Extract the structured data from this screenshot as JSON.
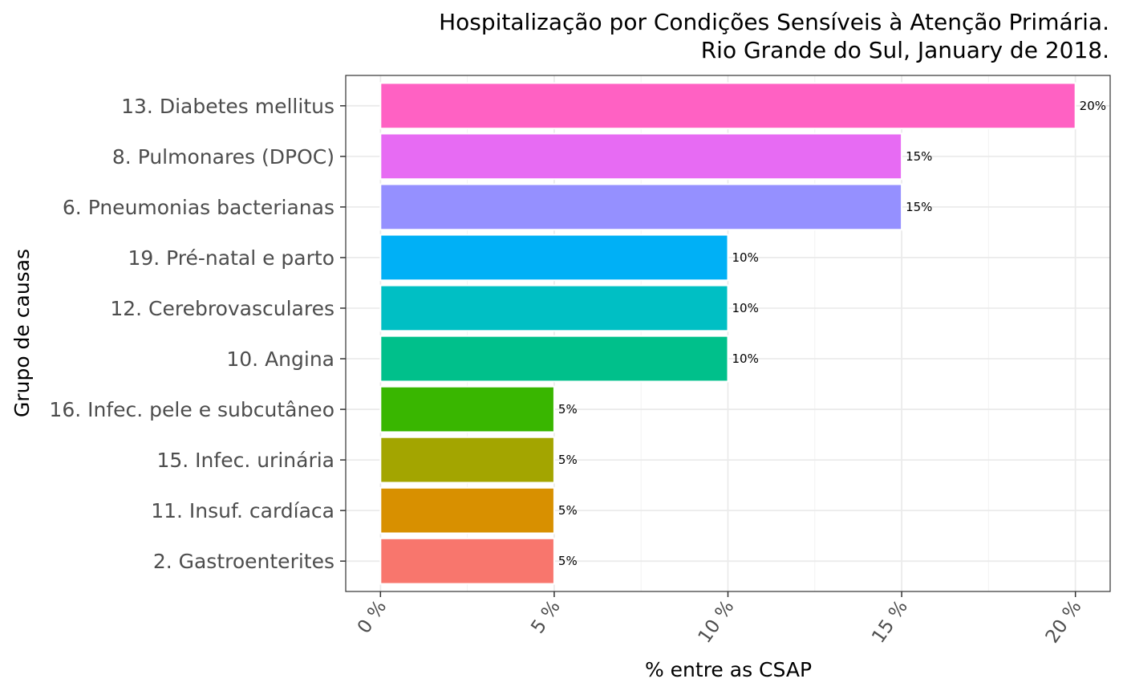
{
  "chart_data": {
    "type": "bar",
    "orientation": "horizontal",
    "title": "Hospitalização por Condições Sensíveis à Atenção Primária.",
    "subtitle": "Rio Grande do Sul, January de 2018.",
    "xlabel": "% entre as CSAP",
    "ylabel": "Grupo de causas",
    "xlim": [
      -1,
      21
    ],
    "x_ticks": [
      0,
      5,
      10,
      15,
      20
    ],
    "x_tick_labels": [
      "0 %",
      "5 %",
      "10 %",
      "15 %",
      "20 %"
    ],
    "grid": true,
    "legend": "none",
    "categories": [
      "13. Diabetes mellitus",
      "8. Pulmonares (DPOC)",
      "6. Pneumonias bacterianas",
      "19. Pré-natal e parto",
      "12. Cerebrovasculares",
      "10. Angina",
      "16. Infec. pele e subcutâneo",
      "15. Infec. urinária",
      "11. Insuf. cardíaca",
      "2. Gastroenterites"
    ],
    "values": [
      20,
      15,
      15,
      10,
      10,
      10,
      5,
      5,
      5,
      5
    ],
    "value_labels": [
      "20%",
      "15%",
      "15%",
      "10%",
      "10%",
      "10%",
      "5%",
      "5%",
      "5%",
      "5%"
    ],
    "colors": [
      "#FF61C3",
      "#E76BF3",
      "#9590FF",
      "#00B0F6",
      "#00BFC4",
      "#00C08B",
      "#39B600",
      "#A3A500",
      "#D89000",
      "#F8766D"
    ]
  }
}
